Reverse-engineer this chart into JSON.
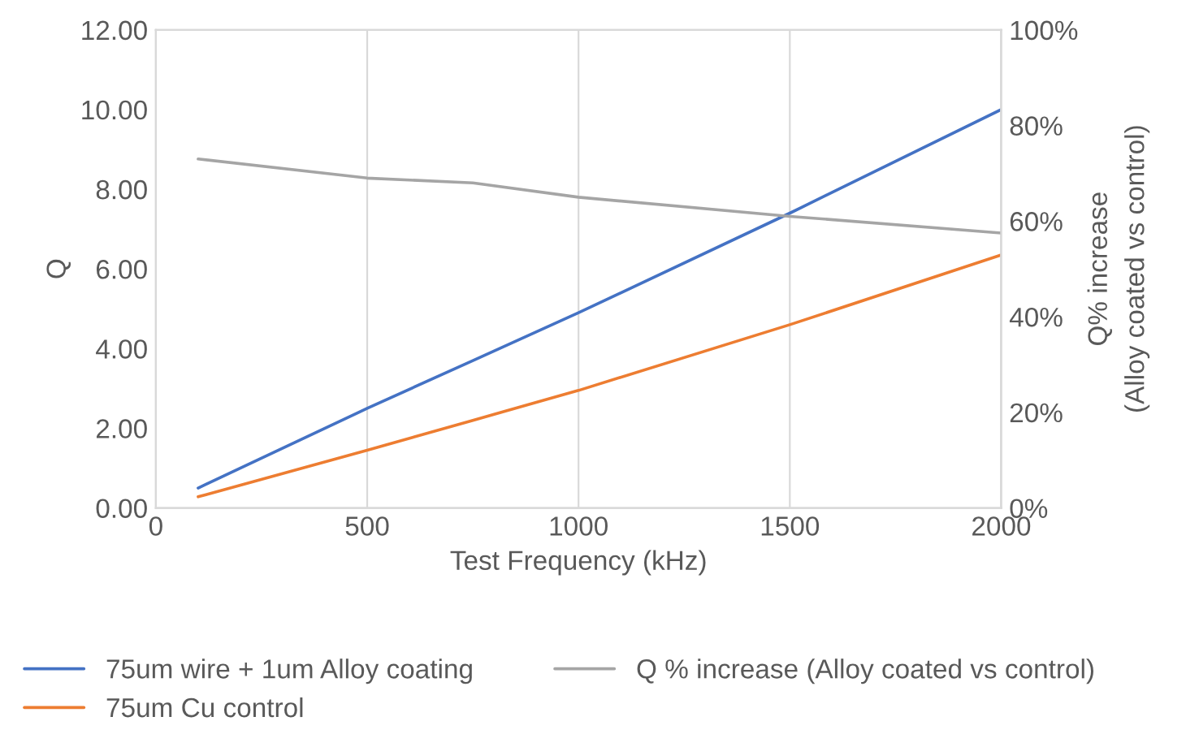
{
  "chart_data": {
    "type": "line",
    "xlabel": "Test Frequency (kHz)",
    "ylabel": "Q",
    "y2label": "Q% increase\n(Alloy coated vs control)",
    "x": [
      100,
      500,
      750,
      1000,
      1500,
      2000
    ],
    "series": [
      {
        "name": "75um wire + 1um Alloy coating",
        "color": "#4472c4",
        "values": [
          0.5,
          2.5,
          3.7,
          4.9,
          7.4,
          10.0
        ]
      },
      {
        "name": "75um Cu control",
        "color": "#ed7d31",
        "values": [
          0.28,
          1.45,
          2.2,
          2.95,
          4.6,
          6.35
        ]
      },
      {
        "name": "Q % increase (Alloy coated vs control)",
        "color": "#a5a5a5",
        "axis": "y2",
        "values": [
          73,
          69,
          68,
          65,
          61,
          57.5
        ]
      }
    ],
    "xlim": [
      0,
      2000
    ],
    "xticks": [
      0,
      500,
      1000,
      1500,
      2000
    ],
    "ylim": [
      0,
      12
    ],
    "yticks": [
      {
        "value": 0,
        "label": "0.00"
      },
      {
        "value": 2,
        "label": "2.00"
      },
      {
        "value": 4,
        "label": "4.00"
      },
      {
        "value": 6,
        "label": "6.00"
      },
      {
        "value": 8,
        "label": "8.00"
      },
      {
        "value": 10,
        "label": "10.00"
      },
      {
        "value": 12,
        "label": "12.00"
      }
    ],
    "y2lim": [
      0,
      100
    ],
    "y2ticks": [
      {
        "value": 0,
        "label": "0%"
      },
      {
        "value": 20,
        "label": "20%"
      },
      {
        "value": 40,
        "label": "40%"
      },
      {
        "value": 60,
        "label": "60%"
      },
      {
        "value": 80,
        "label": "80%"
      },
      {
        "value": 100,
        "label": "100%"
      }
    ],
    "grid": "x",
    "legend": "bottom",
    "marker": "none",
    "line_style": "solid"
  }
}
